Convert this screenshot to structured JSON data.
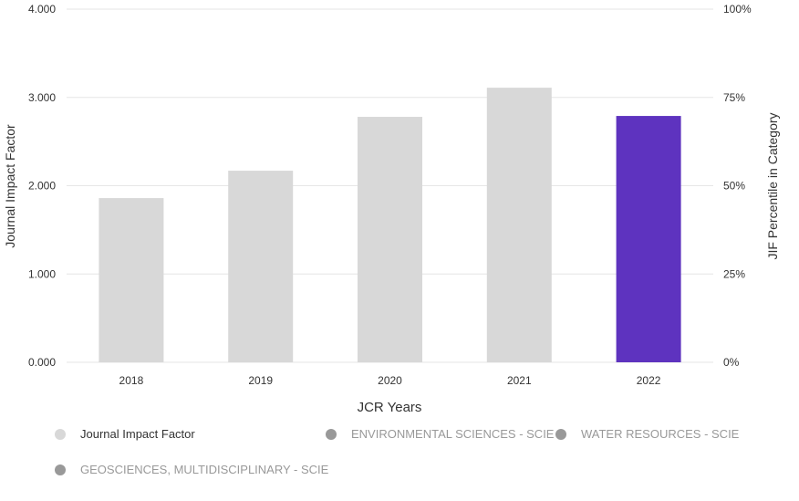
{
  "chart_data": {
    "type": "bar",
    "xlabel": "JCR Years",
    "ylabel": "Journal Impact Factor",
    "y2label": "JIF Percentile in Category",
    "categories": [
      "2018",
      "2019",
      "2020",
      "2021",
      "2022"
    ],
    "values": [
      1.86,
      2.17,
      2.78,
      3.11,
      2.79
    ],
    "highlight_index": 4,
    "ylim": [
      0,
      4
    ],
    "yticks": [
      "0.000",
      "1.000",
      "2.000",
      "3.000",
      "4.000"
    ],
    "y2ticks": [
      "0%",
      "25%",
      "50%",
      "75%",
      "100%"
    ],
    "colors": {
      "bar": "#d8d8d8",
      "highlight": "#5e33bf",
      "grid": "#e6e6e6",
      "text": "#333333"
    }
  },
  "legend": [
    {
      "label": "Journal Impact Factor",
      "color": "#d8d8d8",
      "text_color": "#333333"
    },
    {
      "label": "ENVIRONMENTAL SCIENCES - SCIE",
      "color": "#999999",
      "text_color": "#999999"
    },
    {
      "label": "WATER RESOURCES - SCIE",
      "color": "#999999",
      "text_color": "#999999"
    },
    {
      "label": "GEOSCIENCES, MULTIDISCIPLINARY - SCIE",
      "color": "#999999",
      "text_color": "#999999"
    }
  ]
}
